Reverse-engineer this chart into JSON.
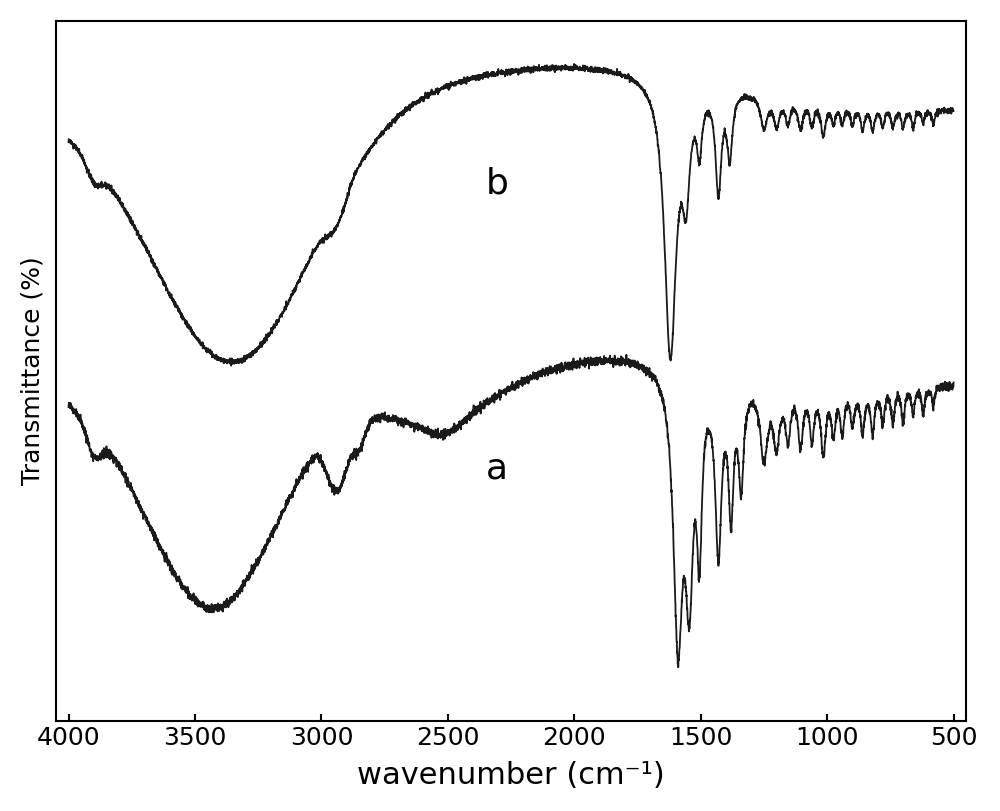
{
  "xlabel": "wavenumber (cm⁻¹)",
  "ylabel": "Transmittance (%)",
  "line_color": "#1a1a1a",
  "line_width": 1.3,
  "label_a": "a",
  "label_b": "b",
  "xticks": [
    4000,
    3500,
    3000,
    2500,
    2000,
    1500,
    1000,
    500
  ],
  "xlabel_fontsize": 22,
  "ylabel_fontsize": 18,
  "tick_fontsize": 18,
  "label_fontsize": 26
}
